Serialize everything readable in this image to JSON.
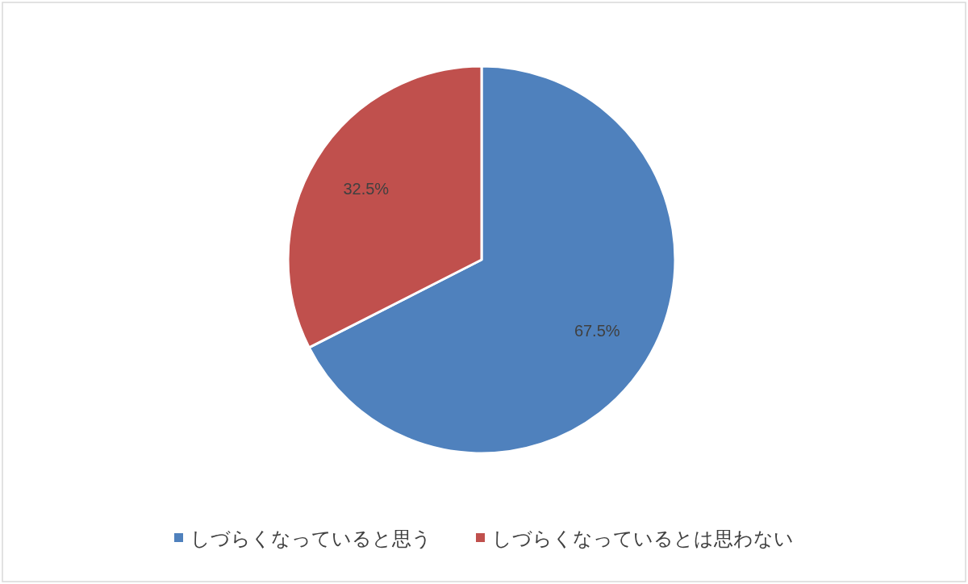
{
  "chart_data": {
    "type": "pie",
    "categories": [
      "しづらくなっていると思う",
      "しづらくなっているとは思わない"
    ],
    "values": [
      67.5,
      32.5
    ],
    "colors": [
      "#4f81bd",
      "#c0504d"
    ],
    "value_labels": [
      "67.5%",
      "32.5%"
    ],
    "legend": "bottom"
  }
}
